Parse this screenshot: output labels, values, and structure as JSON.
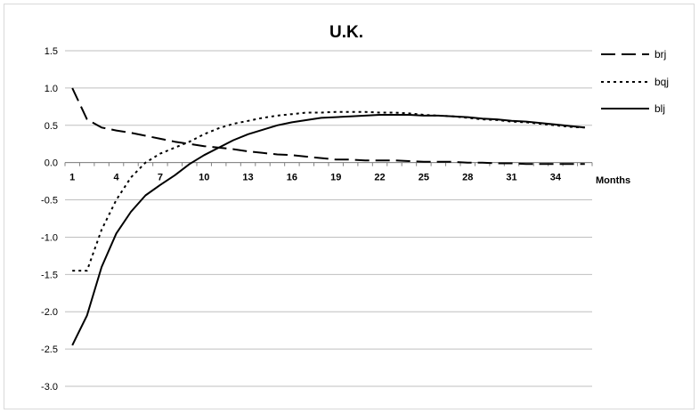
{
  "chart_data": {
    "type": "line",
    "title": "U.K.",
    "xlabel": "Months",
    "ylabel": "",
    "x_tick_labels": [
      "1",
      "4",
      "7",
      "10",
      "13",
      "16",
      "19",
      "22",
      "25",
      "28",
      "31",
      "34"
    ],
    "y_tick_labels": [
      "1.5",
      "1.0",
      "0.5",
      "0.0",
      "-0.5",
      "-1.0",
      "-1.5",
      "-2.0",
      "-2.5",
      "-3.0"
    ],
    "x_range": [
      1,
      36
    ],
    "ylim": [
      -3.0,
      1.5
    ],
    "grid": "horizontal",
    "legend_position": "right",
    "x": [
      1,
      2,
      3,
      4,
      5,
      6,
      7,
      8,
      9,
      10,
      11,
      12,
      13,
      14,
      15,
      16,
      17,
      18,
      19,
      20,
      21,
      22,
      23,
      24,
      25,
      26,
      27,
      28,
      29,
      30,
      31,
      32,
      33,
      34,
      35,
      36
    ],
    "series": [
      {
        "name": "brj",
        "dash": "dashed",
        "color": "#000000",
        "values": [
          1.0,
          0.58,
          0.47,
          0.43,
          0.4,
          0.36,
          0.32,
          0.28,
          0.25,
          0.22,
          0.2,
          0.18,
          0.15,
          0.13,
          0.11,
          0.1,
          0.08,
          0.06,
          0.04,
          0.04,
          0.03,
          0.03,
          0.03,
          0.02,
          0.01,
          0.01,
          0.01,
          0.0,
          0.0,
          -0.01,
          -0.01,
          -0.02,
          -0.02,
          -0.02,
          -0.02,
          -0.02
        ]
      },
      {
        "name": "bqj",
        "dash": "dotted",
        "color": "#000000",
        "values": [
          -1.45,
          -1.45,
          -0.9,
          -0.5,
          -0.2,
          0.0,
          0.12,
          0.2,
          0.28,
          0.38,
          0.46,
          0.52,
          0.56,
          0.6,
          0.63,
          0.65,
          0.67,
          0.67,
          0.68,
          0.68,
          0.68,
          0.67,
          0.67,
          0.66,
          0.64,
          0.63,
          0.62,
          0.6,
          0.58,
          0.57,
          0.55,
          0.54,
          0.52,
          0.5,
          0.48,
          0.47
        ]
      },
      {
        "name": "blj",
        "dash": "solid",
        "color": "#000000",
        "values": [
          -2.45,
          -2.05,
          -1.4,
          -0.95,
          -0.66,
          -0.44,
          -0.3,
          -0.17,
          -0.02,
          0.1,
          0.2,
          0.3,
          0.38,
          0.44,
          0.5,
          0.54,
          0.57,
          0.6,
          0.61,
          0.62,
          0.63,
          0.64,
          0.64,
          0.64,
          0.63,
          0.63,
          0.62,
          0.61,
          0.59,
          0.58,
          0.56,
          0.55,
          0.53,
          0.51,
          0.49,
          0.47
        ]
      }
    ]
  }
}
